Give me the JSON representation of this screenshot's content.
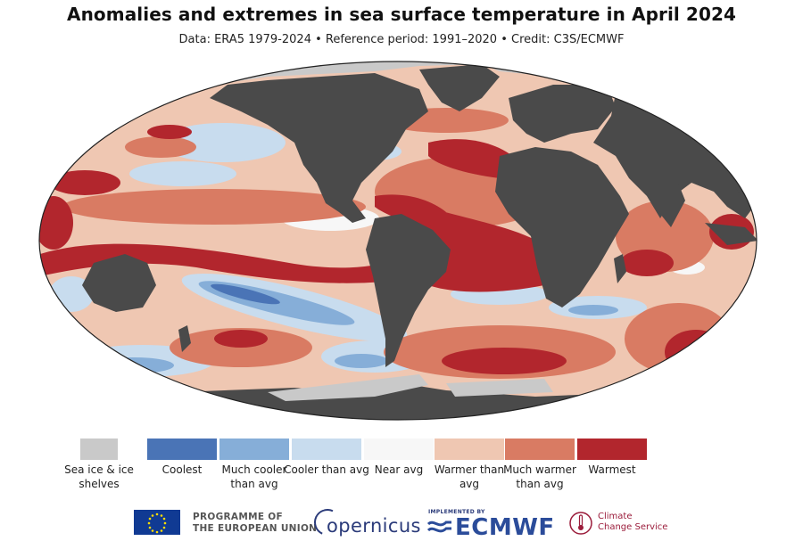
{
  "header": {
    "title": "Anomalies and extremes in sea surface temperature in April 2024",
    "subtitle": "Data: ERA5 1979-2024 • Reference period: 1991–2020 • Credit: C3S/ECMWF"
  },
  "legend": {
    "items": [
      {
        "label": "Sea ice & ice shelves",
        "color": "#c9c9c9"
      },
      {
        "label": "Coolest",
        "color": "#4a74b6"
      },
      {
        "label": "Much cooler than avg",
        "color": "#86aed8"
      },
      {
        "label": "Cooler than avg",
        "color": "#c8dcee"
      },
      {
        "label": "Near avg",
        "color": "#f7f7f7"
      },
      {
        "label": "Warmer than avg",
        "color": "#efc7b2"
      },
      {
        "label": "Much warmer than avg",
        "color": "#d97b63"
      },
      {
        "label": "Warmest",
        "color": "#b2262d"
      }
    ]
  },
  "map": {
    "land_color": "#4a4a4a",
    "ice_color": "#c9c9c9"
  },
  "footer": {
    "programme_line1": "PROGRAMME OF",
    "programme_line2": "THE EUROPEAN UNION",
    "copernicus": "opernicus",
    "implemented_by": "IMPLEMENTED BY",
    "ecmwf": "ECMWF",
    "c3s_line1": "Climate",
    "c3s_line2": "Change Service"
  }
}
